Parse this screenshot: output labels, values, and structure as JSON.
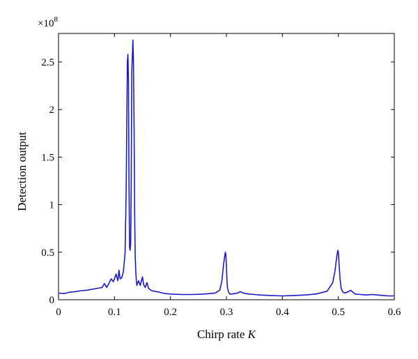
{
  "chart_data": {
    "type": "line",
    "title": "",
    "xlabel": "Chirp rate",
    "xlabel_var": "K",
    "ylabel": "Detection output",
    "y_multiplier": "×10",
    "y_multiplier_exp": "8",
    "xlim": [
      0,
      0.6
    ],
    "ylim": [
      0,
      2.8
    ],
    "x_ticks": [
      0,
      0.1,
      0.2,
      0.3,
      0.4,
      0.5,
      0.6
    ],
    "x_tick_labels": [
      "0",
      "0.1",
      "0.2",
      "0.3",
      "0.4",
      "0.5",
      "0.6"
    ],
    "y_ticks": [
      0,
      0.5,
      1,
      1.5,
      2,
      2.5
    ],
    "y_tick_labels": [
      "0",
      "0.5",
      "1",
      "1.5",
      "2",
      "2.5"
    ],
    "grid": false,
    "legend": "none",
    "series": [
      {
        "color": "#1a1acc",
        "x": [
          0.0,
          0.01,
          0.02,
          0.03,
          0.04,
          0.05,
          0.06,
          0.07,
          0.078,
          0.082,
          0.086,
          0.09,
          0.094,
          0.098,
          0.1,
          0.103,
          0.106,
          0.108,
          0.11,
          0.113,
          0.116,
          0.119,
          0.121,
          0.123,
          0.124,
          0.125,
          0.126,
          0.127,
          0.128,
          0.129,
          0.13,
          0.131,
          0.133,
          0.134,
          0.135,
          0.136,
          0.137,
          0.138,
          0.139,
          0.14,
          0.141,
          0.143,
          0.146,
          0.149,
          0.15,
          0.152,
          0.155,
          0.158,
          0.161,
          0.165,
          0.17,
          0.18,
          0.19,
          0.2,
          0.22,
          0.24,
          0.26,
          0.28,
          0.288,
          0.292,
          0.295,
          0.297,
          0.298,
          0.299,
          0.3,
          0.301,
          0.302,
          0.304,
          0.306,
          0.31,
          0.315,
          0.32,
          0.325,
          0.33,
          0.34,
          0.35,
          0.36,
          0.38,
          0.4,
          0.42,
          0.44,
          0.46,
          0.48,
          0.49,
          0.494,
          0.497,
          0.499,
          0.5,
          0.501,
          0.503,
          0.505,
          0.508,
          0.512,
          0.518,
          0.522,
          0.526,
          0.53,
          0.54,
          0.55,
          0.56,
          0.57,
          0.58,
          0.59,
          0.6
        ],
        "y": [
          0.07,
          0.065,
          0.08,
          0.085,
          0.095,
          0.1,
          0.11,
          0.12,
          0.13,
          0.17,
          0.13,
          0.17,
          0.22,
          0.19,
          0.22,
          0.27,
          0.2,
          0.31,
          0.22,
          0.23,
          0.3,
          0.5,
          1.2,
          2.5,
          2.58,
          2.3,
          1.2,
          0.55,
          0.52,
          0.6,
          1.3,
          2.4,
          2.73,
          2.5,
          1.8,
          0.9,
          0.45,
          0.3,
          0.2,
          0.15,
          0.17,
          0.2,
          0.15,
          0.22,
          0.24,
          0.16,
          0.13,
          0.18,
          0.12,
          0.1,
          0.09,
          0.08,
          0.065,
          0.06,
          0.055,
          0.055,
          0.06,
          0.07,
          0.1,
          0.2,
          0.38,
          0.46,
          0.5,
          0.47,
          0.36,
          0.2,
          0.12,
          0.08,
          0.06,
          0.06,
          0.065,
          0.07,
          0.085,
          0.07,
          0.06,
          0.055,
          0.05,
          0.045,
          0.04,
          0.045,
          0.05,
          0.06,
          0.09,
          0.18,
          0.3,
          0.45,
          0.52,
          0.5,
          0.4,
          0.22,
          0.12,
          0.08,
          0.07,
          0.085,
          0.1,
          0.08,
          0.06,
          0.055,
          0.05,
          0.055,
          0.05,
          0.045,
          0.04,
          0.04
        ]
      }
    ]
  }
}
